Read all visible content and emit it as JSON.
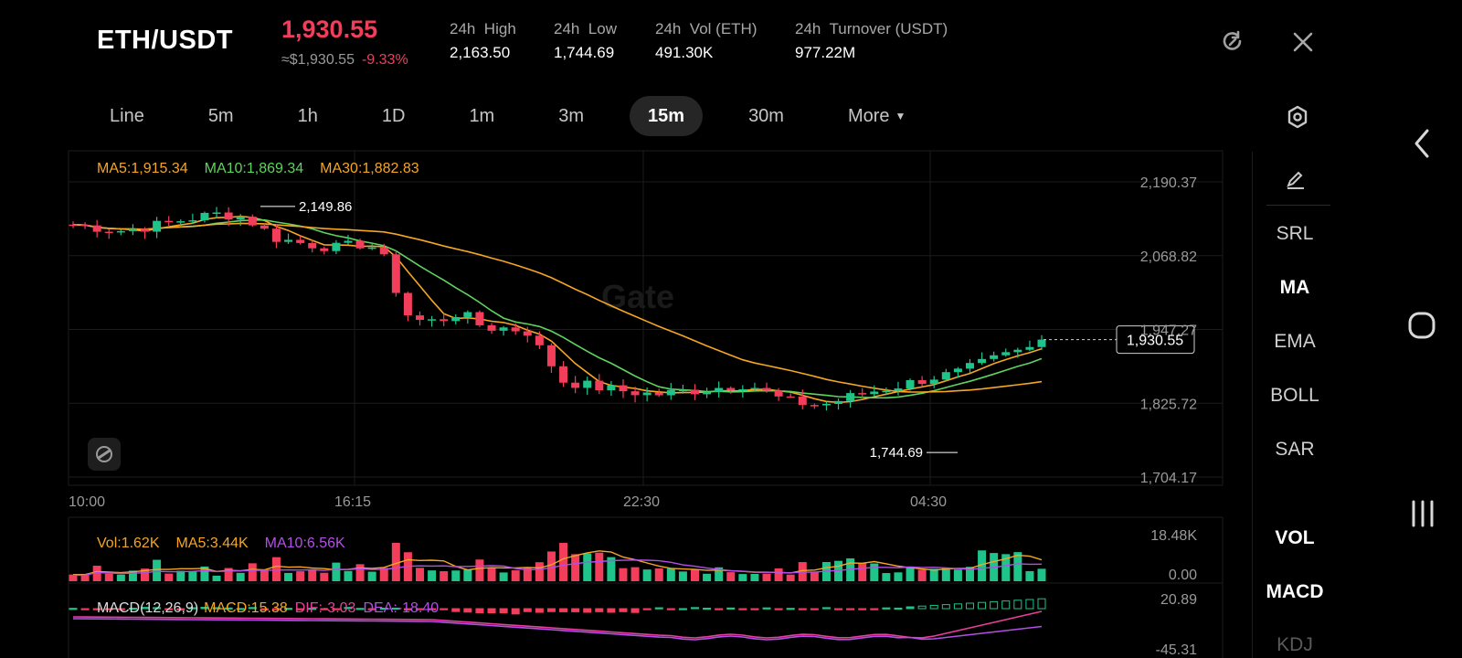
{
  "header": {
    "pair": "ETH/USDT",
    "price": "1,930.55",
    "usd_price": "≈$1,930.55",
    "change": "-9.33%",
    "stats": [
      {
        "label": "24h  High",
        "value": "2,163.50"
      },
      {
        "label": "24h  Low",
        "value": "1,744.69"
      },
      {
        "label": "24h  Vol (ETH)",
        "value": "491.30K"
      },
      {
        "label": "24h  Turnover (USDT)",
        "value": "977.22M"
      }
    ]
  },
  "timeframes": [
    {
      "label": "Line",
      "active": false
    },
    {
      "label": "5m",
      "active": false
    },
    {
      "label": "1h",
      "active": false
    },
    {
      "label": "1D",
      "active": false
    },
    {
      "label": "1m",
      "active": false
    },
    {
      "label": "3m",
      "active": false
    },
    {
      "label": "15m",
      "active": true
    },
    {
      "label": "30m",
      "active": false
    },
    {
      "label": "More",
      "active": false
    }
  ],
  "indicators_menu": [
    "SRL",
    "MA",
    "EMA",
    "BOLL",
    "SAR",
    "VOL",
    "MACD",
    "KDJ"
  ],
  "chart_data": {
    "type": "candlestick",
    "pair": "ETH/USDT",
    "interval": "15m",
    "ma_legend": {
      "ma5": "MA5:1,915.34",
      "ma10": "MA10:1,869.34",
      "ma30": "MA30:1,882.83"
    },
    "price_axis": [
      "2,190.37",
      "2,068.82",
      "1,947.27",
      "1,825.72",
      "1,704.17"
    ],
    "price_axis_values": [
      2190.37,
      2068.82,
      1947.27,
      1825.72,
      1704.17
    ],
    "time_axis": [
      "10:00",
      "16:15",
      "22:30",
      "04:30"
    ],
    "current_price_label": "1,930.55",
    "current_price": 1930.55,
    "high_marker": "2,149.86",
    "high_value": 2149.86,
    "low_marker": "1,744.69",
    "low_value": 1744.69,
    "watermark": "Gate",
    "vol_legend": {
      "vol": "Vol:1.62K",
      "ma5": "MA5:3.44K",
      "ma10": "MA10:6.56K"
    },
    "vol_axis": [
      "18.48K",
      "0.00"
    ],
    "macd_legend": {
      "title": "MACD(12,26,9)",
      "macd": "MACD:15.38",
      "dif": "DIF:-3.03",
      "dea": "DEA:-18.40"
    },
    "macd_axis": [
      "20.89",
      "-45.31"
    ]
  },
  "colors": {
    "up": "#1fc48a",
    "down": "#f23d5b",
    "ma5": "#f5a623",
    "ma10": "#5fd35f",
    "ma30": "#f5a623",
    "vol_ma10": "#b44ee8",
    "dif": "#e8409a"
  }
}
